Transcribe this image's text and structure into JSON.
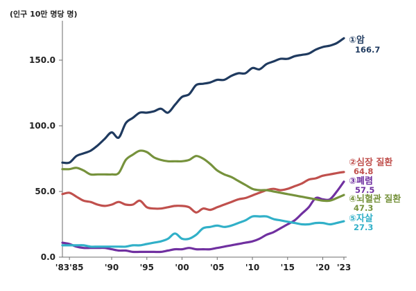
{
  "chart_data": {
    "type": "line",
    "unit_label": "(인구 10만 명당 명)",
    "ylim": [
      0,
      180
    ],
    "y_ticks": [
      {
        "value": 0,
        "label": "0.0"
      },
      {
        "value": 50,
        "label": "50.0"
      },
      {
        "value": 100,
        "label": "100.0"
      },
      {
        "value": 150,
        "label": "150.0"
      }
    ],
    "xlim": [
      1983,
      2023
    ],
    "x_ticks": [
      {
        "value": 1984,
        "label": "'83'85"
      },
      {
        "value": 1990,
        "label": "'90"
      },
      {
        "value": 1995,
        "label": "'95"
      },
      {
        "value": 2000,
        "label": "'00"
      },
      {
        "value": 2005,
        "label": "'05"
      },
      {
        "value": 2010,
        "label": "'10"
      },
      {
        "value": 2015,
        "label": "'15"
      },
      {
        "value": 2020,
        "label": "'20"
      },
      {
        "value": 2023,
        "label": "'23"
      }
    ],
    "x": [
      1983,
      1984,
      1985,
      1986,
      1987,
      1988,
      1989,
      1990,
      1991,
      1992,
      1993,
      1994,
      1995,
      1996,
      1997,
      1998,
      1999,
      2000,
      2001,
      2002,
      2003,
      2004,
      2005,
      2006,
      2007,
      2008,
      2009,
      2010,
      2011,
      2012,
      2013,
      2014,
      2015,
      2016,
      2017,
      2018,
      2019,
      2020,
      2021,
      2022,
      2023
    ],
    "series": [
      {
        "name": "①암",
        "final_label": "166.7",
        "color": "#1f3a5f",
        "values": [
          72,
          72,
          77,
          79,
          81,
          85,
          90,
          95,
          91,
          102,
          106,
          110,
          110,
          111,
          113,
          110,
          116,
          122,
          124,
          131,
          132,
          133,
          135,
          135,
          138,
          140,
          140,
          144,
          143,
          147,
          149,
          151,
          151,
          153,
          154,
          155,
          158,
          160,
          161,
          163,
          166.7
        ]
      },
      {
        "name": "②심장 질환",
        "final_label": "64.8",
        "color": "#c0504d",
        "values": [
          48,
          49,
          46,
          43,
          42,
          40,
          39,
          40,
          42,
          40,
          40,
          43,
          38,
          37,
          37,
          38,
          39,
          39,
          38,
          34,
          37,
          36,
          38,
          40,
          42,
          44,
          45,
          47,
          49,
          51,
          52,
          51,
          52,
          54,
          56,
          59,
          60,
          62,
          63,
          64,
          64.8
        ]
      },
      {
        "name": "③폐렴",
        "final_label": "57.5",
        "color": "#7030a0",
        "values": [
          11,
          10,
          8,
          7,
          7,
          7,
          7,
          6,
          5,
          5,
          4,
          4,
          4,
          4,
          4,
          5,
          6,
          6,
          7,
          6,
          6,
          6,
          7,
          8,
          9,
          10,
          11,
          12,
          14,
          17,
          19,
          22,
          25,
          28,
          33,
          38,
          45,
          44,
          44,
          50,
          57.5
        ]
      },
      {
        "name": "④뇌혈관 질환",
        "final_label": "47.3",
        "color": "#76923c",
        "values": [
          67,
          67,
          68,
          66,
          63,
          63,
          63,
          63,
          64,
          74,
          78,
          81,
          80,
          76,
          74,
          73,
          73,
          73,
          74,
          77,
          75,
          71,
          66,
          63,
          61,
          58,
          55,
          52,
          51,
          51,
          50,
          49,
          48,
          47,
          46,
          45,
          44,
          43,
          43,
          45,
          47.3
        ]
      },
      {
        "name": "⑤자살",
        "final_label": "27.3",
        "color": "#31b0c8",
        "values": [
          9,
          9,
          9,
          9,
          8,
          8,
          8,
          8,
          8,
          8,
          9,
          9,
          10,
          11,
          12,
          14,
          18,
          14,
          14,
          17,
          22,
          23,
          24,
          23,
          24,
          26,
          28,
          31,
          31,
          31,
          29,
          28,
          27,
          26,
          25,
          25,
          26,
          26,
          25,
          26,
          27.3
        ]
      }
    ]
  }
}
